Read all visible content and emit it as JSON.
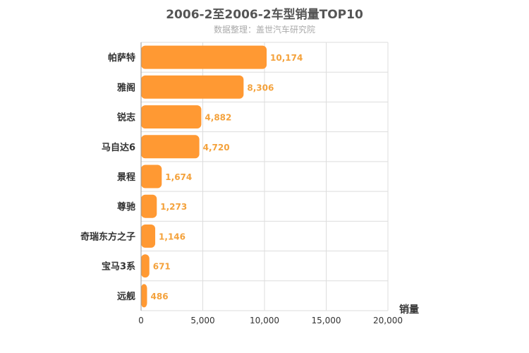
{
  "chart_data": {
    "type": "bar",
    "orientation": "horizontal",
    "title": "2006-2至2006-2车型销量TOP10",
    "subtitle": "数据整理：盖世汽车研究院",
    "categories": [
      "帕萨特",
      "雅阁",
      "锐志",
      "马自达6",
      "景程",
      "尊驰",
      "奇瑞东方之子",
      "宝马3系",
      "远舰"
    ],
    "values": [
      10174,
      8306,
      4882,
      4720,
      1674,
      1273,
      1146,
      671,
      486
    ],
    "value_labels": [
      "10,174",
      "8,306",
      "4,882",
      "4,720",
      "1,674",
      "1,273",
      "1,146",
      "671",
      "486"
    ],
    "xlabel": "销量",
    "ylabel": "",
    "xlim": [
      0,
      20000
    ],
    "ticks": [
      0,
      5000,
      10000,
      15000,
      20000
    ],
    "tick_labels": [
      "0",
      "5,000",
      "10,000",
      "15,000",
      "20,000"
    ],
    "grid": true,
    "bar_color": "#ff9933"
  }
}
